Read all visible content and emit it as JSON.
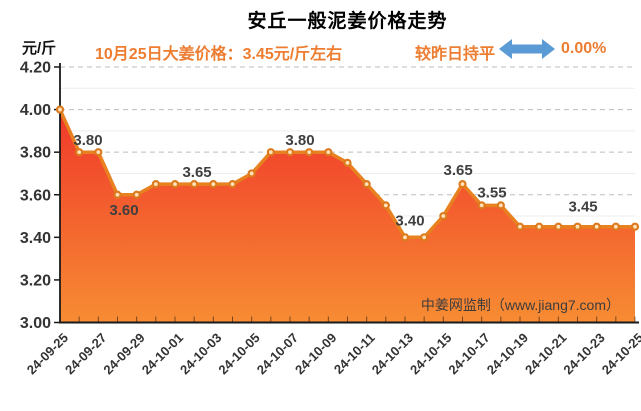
{
  "header": {
    "title": "安丘一般泥姜价格走势",
    "unit_label": "元/斤",
    "price_note": "10月25日大姜价格：3.45元/斤左右",
    "trend_label": "较昨日持平",
    "trend_percent": "0.00%",
    "trend_icon": "horizontal-double-arrow-icon"
  },
  "watermark": "中姜网监制（www.jiang7.com）",
  "colors": {
    "accent_orange": "#ed7d31",
    "arrow_blue": "#5b9bd5",
    "line": "#e8811f",
    "marker_ring": "#dd7a1e",
    "marker_fill": "#ffe2ba",
    "area_top": "#f0382a",
    "area_bottom": "#f78c33",
    "grid_major": "#bdbdbd",
    "grid_minor": "#ededed",
    "axis": "#1a1a1a",
    "tick_inside": "rgba(0,0,0,0.5)",
    "label_dark": "#3f3f3f"
  },
  "chart_data": {
    "type": "area",
    "title": "安丘一般泥姜价格走势",
    "ylabel_unit": "元/斤",
    "ylim": [
      3.0,
      4.2
    ],
    "y_ticks": [
      "3.00",
      "3.20",
      "3.40",
      "3.60",
      "3.80",
      "4.00",
      "4.20"
    ],
    "y_minor_ticks": [
      3.1,
      3.3,
      3.5,
      3.7,
      3.9,
      4.1
    ],
    "grid": "dashed-major-with-faint-minor",
    "legend_position": "none",
    "x": [
      "24-09-25",
      "24-09-26",
      "24-09-27",
      "24-09-28",
      "24-09-29",
      "24-09-30",
      "24-10-01",
      "24-10-02",
      "24-10-03",
      "24-10-04",
      "24-10-05",
      "24-10-06",
      "24-10-07",
      "24-10-08",
      "24-10-09",
      "24-10-10",
      "24-10-11",
      "24-10-12",
      "24-10-13",
      "24-10-14",
      "24-10-15",
      "24-10-16",
      "24-10-17",
      "24-10-18",
      "24-10-19",
      "24-10-20",
      "24-10-21",
      "24-10-22",
      "24-10-23",
      "24-10-24",
      "24-10-25"
    ],
    "x_label_every": 2,
    "values": [
      4.0,
      3.8,
      3.8,
      3.6,
      3.6,
      3.65,
      3.65,
      3.65,
      3.65,
      3.65,
      3.7,
      3.8,
      3.8,
      3.8,
      3.8,
      3.75,
      3.65,
      3.55,
      3.4,
      3.4,
      3.5,
      3.65,
      3.55,
      3.55,
      3.45,
      3.45,
      3.45,
      3.45,
      3.45,
      3.45,
      3.45
    ],
    "annotations": [
      {
        "text": "3.80",
        "i": 1.46,
        "value": 3.8,
        "dy": -12
      },
      {
        "text": "3.60",
        "i": 3.34,
        "value": 3.6,
        "dy": 15
      },
      {
        "text": "3.65",
        "i": 7.15,
        "value": 3.65,
        "dy": -12
      },
      {
        "text": "3.80",
        "i": 12.52,
        "value": 3.8,
        "dy": -12
      },
      {
        "text": "3.40",
        "i": 18.26,
        "value": 3.4,
        "dy": -17
      },
      {
        "text": "3.65",
        "i": 20.77,
        "value": 3.65,
        "dy": -14
      },
      {
        "text": "3.55",
        "i": 22.54,
        "value": 3.55,
        "dy": -13
      },
      {
        "text": "3.45",
        "i": 27.29,
        "value": 3.45,
        "dy": -20
      }
    ]
  }
}
